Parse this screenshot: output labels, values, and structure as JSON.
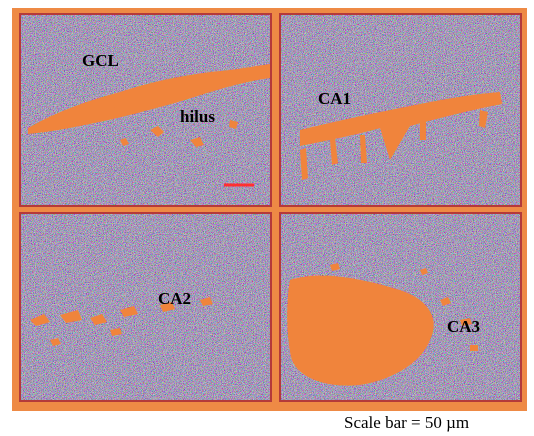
{
  "panels": [
    {
      "labels": [
        "GCL",
        "hilus"
      ]
    },
    {
      "labels": [
        "CA1"
      ]
    },
    {
      "labels": [
        "CA2"
      ]
    },
    {
      "labels": [
        "CA3"
      ]
    }
  ],
  "caption": "Scale bar = 50 µm"
}
